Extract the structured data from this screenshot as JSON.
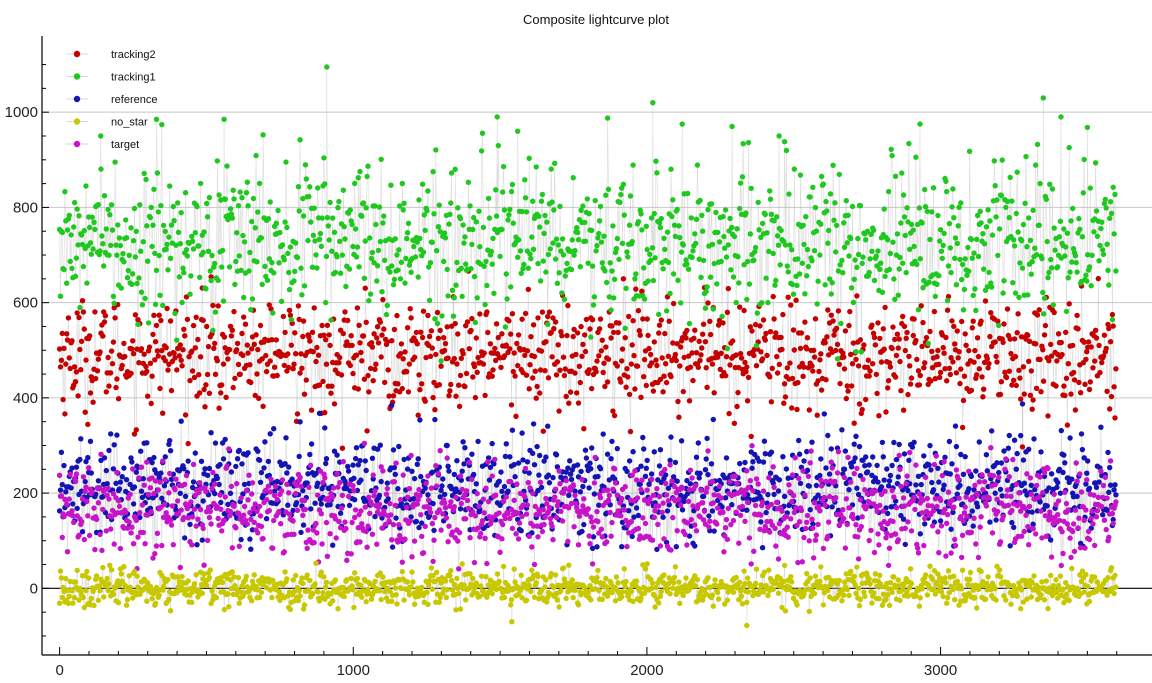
{
  "chart_data": {
    "type": "scatter",
    "title": "Composite lightcurve plot",
    "xlabel": "",
    "ylabel": "",
    "xlim": [
      -60,
      3720
    ],
    "ylim": [
      -140,
      1160
    ],
    "x_ticks": [
      0,
      1000,
      2000,
      3000
    ],
    "y_ticks": [
      0,
      200,
      400,
      600,
      800,
      1000
    ],
    "grid": "horizontal",
    "legend_position": "top-left",
    "x_count": 3600,
    "series": [
      {
        "name": "tracking2",
        "color": "#c40000",
        "mean": 490,
        "spread": 58,
        "min": 290,
        "max": 690
      },
      {
        "name": "tracking1",
        "color": "#1ec81e",
        "mean": 730,
        "spread": 80,
        "min": 470,
        "max": 1000,
        "peaks": [
          [
            140,
            950
          ],
          [
            330,
            985
          ],
          [
            560,
            985
          ],
          [
            910,
            1095
          ],
          [
            1490,
            990
          ],
          [
            1560,
            960
          ],
          [
            2020,
            1020
          ],
          [
            2120,
            975
          ],
          [
            2290,
            970
          ],
          [
            2450,
            950
          ],
          [
            2930,
            975
          ],
          [
            3350,
            1030
          ],
          [
            3410,
            990
          ],
          [
            3500,
            968
          ]
        ]
      },
      {
        "name": "reference",
        "color": "#1414b4",
        "mean": 215,
        "spread": 55,
        "min": 80,
        "max": 390
      },
      {
        "name": "no_star",
        "color": "#c8c800",
        "mean": 0,
        "spread": 18,
        "min": -50,
        "max": 60,
        "peaks": [
          [
            1540,
            -70
          ],
          [
            2340,
            -78
          ]
        ]
      },
      {
        "name": "target",
        "color": "#c814c8",
        "mean": 165,
        "spread": 48,
        "min": 40,
        "max": 310
      }
    ]
  }
}
